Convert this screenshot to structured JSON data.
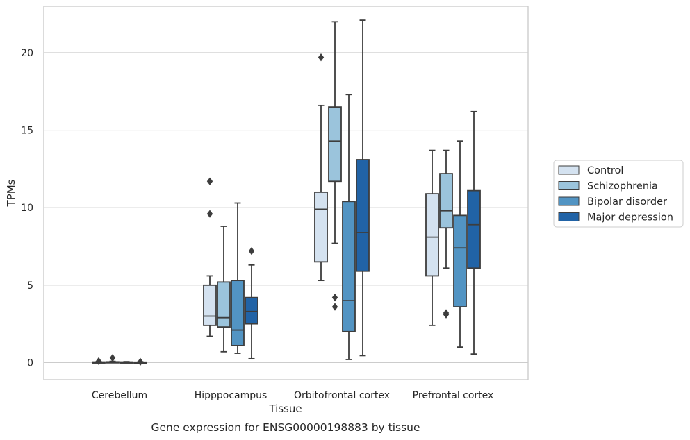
{
  "chart_data": {
    "type": "box",
    "categories": [
      "Cerebellum",
      "Hipppocampus",
      "Orbitofrontal cortex",
      "Prefrontal cortex"
    ],
    "xlabel": "Tissue",
    "ylabel": "TPMs",
    "caption": "Gene expression for ENSG00000198883 by tissue",
    "ylim": [
      -1.1,
      23.0
    ],
    "yticks": [
      0,
      5,
      10,
      15,
      20
    ],
    "grid": "horizontal",
    "legend_position": "center-right",
    "series": [
      {
        "name": "Control",
        "color": "#d4e2f0",
        "boxes": [
          {
            "whislo": 0.0,
            "q1": 0.0,
            "med": 0.02,
            "q3": 0.04,
            "whishi": 0.06,
            "fliers": [
              0.09
            ]
          },
          {
            "whislo": 1.7,
            "q1": 2.4,
            "med": 3.0,
            "q3": 5.0,
            "whishi": 5.6,
            "fliers": [
              9.6,
              11.7
            ]
          },
          {
            "whislo": 5.3,
            "q1": 6.5,
            "med": 9.9,
            "q3": 11.0,
            "whishi": 16.6,
            "fliers": [
              19.7
            ]
          },
          {
            "whislo": 2.4,
            "q1": 5.6,
            "med": 8.1,
            "q3": 10.9,
            "whishi": 13.7,
            "fliers": []
          }
        ]
      },
      {
        "name": "Schizophrenia",
        "color": "#9bc4dc",
        "boxes": [
          {
            "whislo": 0.0,
            "q1": 0.01,
            "med": 0.03,
            "q3": 0.05,
            "whishi": 0.08,
            "fliers": [
              0.3
            ]
          },
          {
            "whislo": 0.7,
            "q1": 2.3,
            "med": 2.9,
            "q3": 5.2,
            "whishi": 8.8,
            "fliers": []
          },
          {
            "whislo": 7.7,
            "q1": 11.7,
            "med": 14.3,
            "q3": 16.5,
            "whishi": 22.0,
            "fliers": [
              4.2,
              3.6
            ]
          },
          {
            "whislo": 6.1,
            "q1": 8.7,
            "med": 9.8,
            "q3": 12.2,
            "whishi": 13.7,
            "fliers": [
              3.2,
              3.1
            ]
          }
        ]
      },
      {
        "name": "Bipolar disorder",
        "color": "#5294c3",
        "boxes": [
          {
            "whislo": 0.0,
            "q1": 0.0,
            "med": 0.02,
            "q3": 0.04,
            "whishi": 0.06,
            "fliers": []
          },
          {
            "whislo": 0.6,
            "q1": 1.1,
            "med": 2.1,
            "q3": 5.3,
            "whishi": 10.3,
            "fliers": []
          },
          {
            "whislo": 0.2,
            "q1": 2.0,
            "med": 4.0,
            "q3": 10.4,
            "whishi": 17.3,
            "fliers": []
          },
          {
            "whislo": 1.0,
            "q1": 3.6,
            "med": 7.4,
            "q3": 9.5,
            "whishi": 14.3,
            "fliers": []
          }
        ]
      },
      {
        "name": "Major depression",
        "color": "#2163a6",
        "boxes": [
          {
            "whislo": 0.0,
            "q1": 0.0,
            "med": 0.01,
            "q3": 0.03,
            "whishi": 0.05,
            "fliers": [
              0.05
            ]
          },
          {
            "whislo": 0.25,
            "q1": 2.5,
            "med": 3.3,
            "q3": 4.2,
            "whishi": 6.3,
            "fliers": [
              7.2
            ]
          },
          {
            "whislo": 0.45,
            "q1": 5.9,
            "med": 8.4,
            "q3": 13.1,
            "whishi": 22.1,
            "fliers": []
          },
          {
            "whislo": 0.55,
            "q1": 6.1,
            "med": 8.9,
            "q3": 11.1,
            "whishi": 16.2,
            "fliers": []
          }
        ]
      }
    ]
  }
}
